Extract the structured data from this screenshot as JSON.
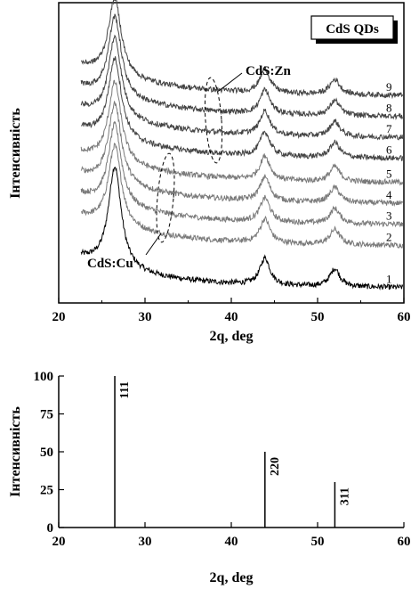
{
  "chart_data": [
    {
      "type": "line",
      "title": "",
      "xlabel": "2q, deg",
      "ylabel": "Інтенсивність",
      "xlim": [
        20,
        60
      ],
      "x_ticks": [
        "20",
        "30",
        "40",
        "50",
        "60"
      ],
      "y_ticks_labeled": false,
      "legend": {
        "text": "CdS QDs",
        "position": "top-right"
      },
      "annotations": [
        {
          "text": "CdS:Zn",
          "points_to_curves": [
            "6",
            "7",
            "8",
            "9"
          ]
        },
        {
          "text": "CdS:Cu",
          "points_to_curves": [
            "2",
            "3",
            "4",
            "5"
          ]
        }
      ],
      "peaks_deg": [
        26.5,
        43.9,
        52.0
      ],
      "series": [
        {
          "name": "1",
          "color": "#000000",
          "baseline": 0.05,
          "peak_heights": [
            0.34,
            0.09,
            0.06
          ],
          "background": 0.1
        },
        {
          "name": "2",
          "color": "#7a7a7a",
          "baseline": 0.19,
          "peak_heights": [
            0.27,
            0.08,
            0.05
          ],
          "background": 0.1
        },
        {
          "name": "3",
          "color": "#7a7a7a",
          "baseline": 0.26,
          "peak_heights": [
            0.27,
            0.08,
            0.05
          ],
          "background": 0.1
        },
        {
          "name": "4",
          "color": "#7a7a7a",
          "baseline": 0.33,
          "peak_heights": [
            0.27,
            0.08,
            0.05
          ],
          "background": 0.1
        },
        {
          "name": "5",
          "color": "#7a7a7a",
          "baseline": 0.4,
          "peak_heights": [
            0.27,
            0.08,
            0.05
          ],
          "background": 0.1
        },
        {
          "name": "6",
          "color": "#444444",
          "baseline": 0.48,
          "peak_heights": [
            0.27,
            0.08,
            0.05
          ],
          "background": 0.1
        },
        {
          "name": "7",
          "color": "#444444",
          "baseline": 0.55,
          "peak_heights": [
            0.27,
            0.08,
            0.05
          ],
          "background": 0.1
        },
        {
          "name": "8",
          "color": "#444444",
          "baseline": 0.62,
          "peak_heights": [
            0.27,
            0.08,
            0.05
          ],
          "background": 0.1
        },
        {
          "name": "9",
          "color": "#444444",
          "baseline": 0.69,
          "peak_heights": [
            0.26,
            0.08,
            0.05
          ],
          "background": 0.1
        }
      ]
    },
    {
      "type": "bar",
      "title": "",
      "xlabel": "2q, deg",
      "ylabel": "Інтенсивність",
      "xlim": [
        20,
        60
      ],
      "ylim": [
        0,
        100
      ],
      "x_ticks": [
        "20",
        "30",
        "40",
        "50",
        "60"
      ],
      "y_ticks": [
        "0",
        "25",
        "50",
        "75",
        "100"
      ],
      "bars": [
        {
          "x": 26.5,
          "value": 100,
          "label": "111"
        },
        {
          "x": 43.9,
          "value": 50,
          "label": "220"
        },
        {
          "x": 52.0,
          "value": 30,
          "label": "311"
        }
      ]
    }
  ]
}
